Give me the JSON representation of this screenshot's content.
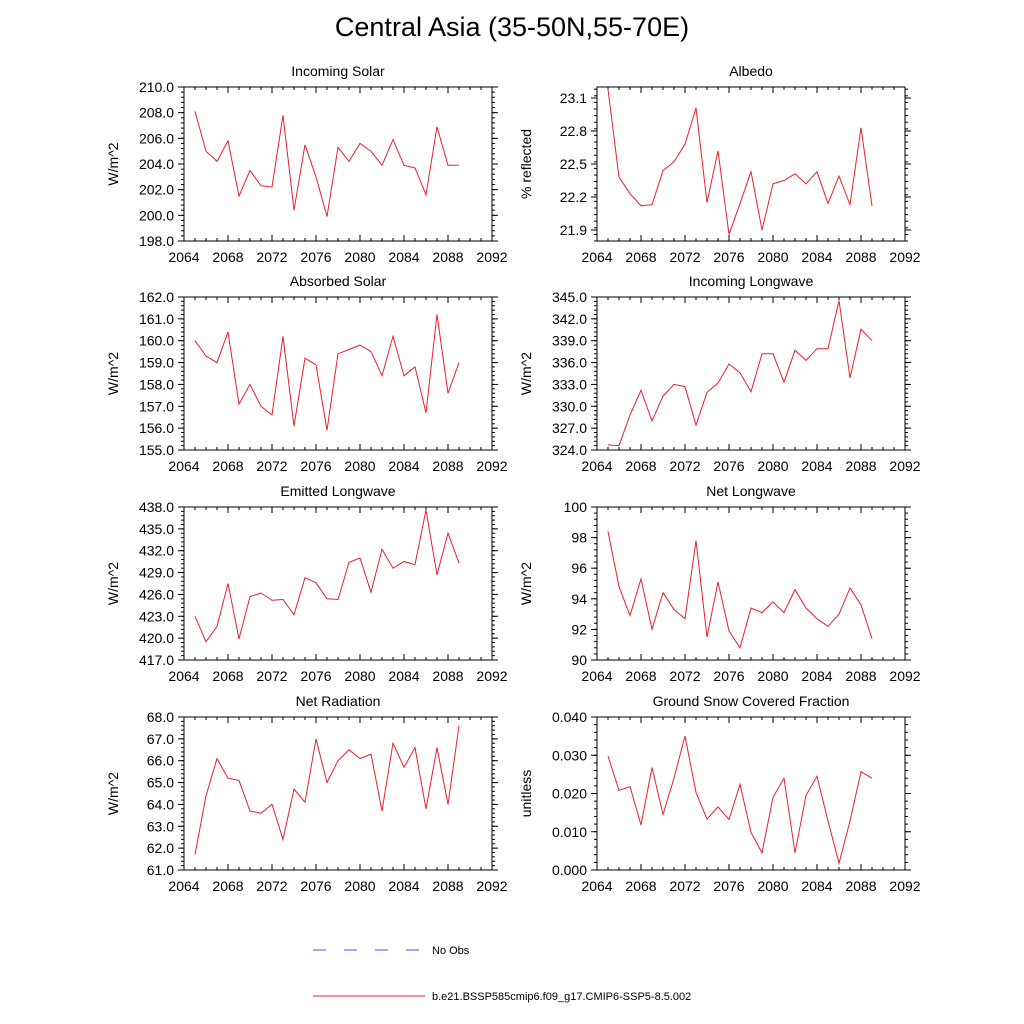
{
  "page": {
    "title": "Central Asia (35-50N,55-70E)"
  },
  "legend": {
    "items": [
      {
        "label": "No Obs",
        "color": "#4a5acb",
        "dash": "dashed"
      },
      {
        "label": "b.e21.BSSP585cmip6.f09_g17.CMIP6-SSP5-8.5.002",
        "color": "#e8202a",
        "dash": "solid"
      }
    ]
  },
  "chart_data": [
    {
      "type": "line",
      "title": "Incoming Solar",
      "ylabel": "W/m^2",
      "xlim": [
        2064,
        2092
      ],
      "xticks": [
        2064,
        2068,
        2072,
        2076,
        2080,
        2084,
        2088,
        2092
      ],
      "ylim": [
        198.0,
        210.0
      ],
      "yticks": [
        "198.0",
        "200.0",
        "202.0",
        "204.0",
        "206.0",
        "208.0",
        "210.0"
      ],
      "color": "#e8202a",
      "x": [
        2065,
        2066,
        2067,
        2068,
        2069,
        2070,
        2071,
        2072,
        2073,
        2074,
        2075,
        2076,
        2077,
        2078,
        2079,
        2080,
        2081,
        2082,
        2083,
        2084,
        2085,
        2086,
        2087,
        2088,
        2089
      ],
      "y": [
        208.1,
        205.0,
        204.2,
        205.8,
        201.5,
        203.5,
        202.3,
        202.2,
        207.8,
        200.4,
        205.5,
        203.0,
        199.9,
        205.3,
        204.2,
        205.6,
        205.0,
        203.9,
        205.9,
        203.9,
        203.7,
        201.6,
        206.9,
        203.9,
        203.9
      ]
    },
    {
      "type": "line",
      "title": "Albedo",
      "ylabel": "% reflected",
      "xlim": [
        2064,
        2092
      ],
      "xticks": [
        2064,
        2068,
        2072,
        2076,
        2080,
        2084,
        2088,
        2092
      ],
      "ylim": [
        21.8,
        23.2
      ],
      "yticks": [
        "21.9",
        "22.2",
        "22.5",
        "22.8",
        "23.1"
      ],
      "color": "#e8202a",
      "x": [
        2065,
        2066,
        2067,
        2068,
        2069,
        2070,
        2071,
        2072,
        2073,
        2074,
        2075,
        2076,
        2077,
        2078,
        2079,
        2080,
        2081,
        2082,
        2083,
        2084,
        2085,
        2086,
        2087,
        2088,
        2089
      ],
      "y": [
        23.18,
        22.38,
        22.23,
        22.12,
        22.13,
        22.44,
        22.52,
        22.68,
        23.01,
        22.15,
        22.62,
        21.86,
        22.14,
        22.43,
        21.9,
        22.32,
        22.35,
        22.41,
        22.32,
        22.43,
        22.14,
        22.39,
        22.13,
        22.83,
        22.12
      ]
    },
    {
      "type": "line",
      "title": "Absorbed Solar",
      "ylabel": "W/m^2",
      "xlim": [
        2064,
        2092
      ],
      "xticks": [
        2064,
        2068,
        2072,
        2076,
        2080,
        2084,
        2088,
        2092
      ],
      "ylim": [
        155.0,
        162.0
      ],
      "yticks": [
        "155.0",
        "156.0",
        "157.0",
        "158.0",
        "159.0",
        "160.0",
        "161.0",
        "162.0"
      ],
      "color": "#e8202a",
      "x": [
        2065,
        2066,
        2067,
        2068,
        2069,
        2070,
        2071,
        2072,
        2073,
        2074,
        2075,
        2076,
        2077,
        2078,
        2079,
        2080,
        2081,
        2082,
        2083,
        2084,
        2085,
        2086,
        2087,
        2088,
        2089
      ],
      "y": [
        160.0,
        159.3,
        159.0,
        160.4,
        157.1,
        158.0,
        157.0,
        156.6,
        160.2,
        156.1,
        159.2,
        158.9,
        155.9,
        159.4,
        159.6,
        159.8,
        159.5,
        158.4,
        160.2,
        158.4,
        158.8,
        156.7,
        161.2,
        157.6,
        159.0
      ]
    },
    {
      "type": "line",
      "title": "Incoming Longwave",
      "ylabel": "W/m^2",
      "xlim": [
        2064,
        2092
      ],
      "xticks": [
        2064,
        2068,
        2072,
        2076,
        2080,
        2084,
        2088,
        2092
      ],
      "ylim": [
        324.0,
        345.0
      ],
      "yticks": [
        "324.0",
        "327.0",
        "330.0",
        "333.0",
        "336.0",
        "339.0",
        "342.0",
        "345.0"
      ],
      "color": "#e8202a",
      "x": [
        2065,
        2066,
        2067,
        2068,
        2069,
        2070,
        2071,
        2072,
        2073,
        2074,
        2075,
        2076,
        2077,
        2078,
        2079,
        2080,
        2081,
        2082,
        2083,
        2084,
        2085,
        2086,
        2087,
        2088,
        2089
      ],
      "y": [
        324.7,
        324.6,
        328.8,
        332.2,
        328.0,
        331.4,
        333.0,
        332.7,
        327.4,
        331.9,
        333.2,
        335.8,
        334.6,
        332.0,
        337.2,
        337.2,
        333.3,
        337.7,
        336.3,
        337.9,
        337.9,
        344.5,
        333.9,
        340.6,
        339.0
      ]
    },
    {
      "type": "line",
      "title": "Emitted Longwave",
      "ylabel": "W/m^2",
      "xlim": [
        2064,
        2092
      ],
      "xticks": [
        2064,
        2068,
        2072,
        2076,
        2080,
        2084,
        2088,
        2092
      ],
      "ylim": [
        417.0,
        438.0
      ],
      "yticks": [
        "417.0",
        "420.0",
        "423.0",
        "426.0",
        "429.0",
        "432.0",
        "435.0",
        "438.0"
      ],
      "color": "#e8202a",
      "x": [
        2065,
        2066,
        2067,
        2068,
        2069,
        2070,
        2071,
        2072,
        2073,
        2074,
        2075,
        2076,
        2077,
        2078,
        2079,
        2080,
        2081,
        2082,
        2083,
        2084,
        2085,
        2086,
        2087,
        2088,
        2089
      ],
      "y": [
        423.0,
        419.5,
        421.6,
        427.5,
        419.9,
        425.7,
        426.2,
        425.2,
        425.3,
        423.2,
        428.3,
        427.6,
        425.4,
        425.3,
        430.4,
        431.0,
        426.3,
        432.2,
        429.6,
        430.5,
        430.1,
        437.6,
        428.7,
        434.4,
        430.3
      ]
    },
    {
      "type": "line",
      "title": "Net Longwave",
      "ylabel": "W/m^2",
      "xlim": [
        2064,
        2092
      ],
      "xticks": [
        2064,
        2068,
        2072,
        2076,
        2080,
        2084,
        2088,
        2092
      ],
      "ylim": [
        90,
        100
      ],
      "yticks": [
        "90",
        "92",
        "94",
        "96",
        "98",
        "100"
      ],
      "color": "#e8202a",
      "x": [
        2065,
        2066,
        2067,
        2068,
        2069,
        2070,
        2071,
        2072,
        2073,
        2074,
        2075,
        2076,
        2077,
        2078,
        2079,
        2080,
        2081,
        2082,
        2083,
        2084,
        2085,
        2086,
        2087,
        2088,
        2089
      ],
      "y": [
        98.4,
        94.8,
        92.9,
        95.3,
        92.0,
        94.4,
        93.3,
        92.7,
        97.8,
        91.5,
        95.1,
        91.9,
        90.8,
        93.4,
        93.1,
        93.8,
        93.1,
        94.6,
        93.4,
        92.7,
        92.2,
        93.0,
        94.7,
        93.6,
        91.4
      ]
    },
    {
      "type": "line",
      "title": "Net Radiation",
      "ylabel": "W/m^2",
      "xlim": [
        2064,
        2092
      ],
      "xticks": [
        2064,
        2068,
        2072,
        2076,
        2080,
        2084,
        2088,
        2092
      ],
      "ylim": [
        61.0,
        68.0
      ],
      "yticks": [
        "61.0",
        "62.0",
        "63.0",
        "64.0",
        "65.0",
        "66.0",
        "67.0",
        "68.0"
      ],
      "color": "#e8202a",
      "x": [
        2065,
        2066,
        2067,
        2068,
        2069,
        2070,
        2071,
        2072,
        2073,
        2074,
        2075,
        2076,
        2077,
        2078,
        2079,
        2080,
        2081,
        2082,
        2083,
        2084,
        2085,
        2086,
        2087,
        2088,
        2089
      ],
      "y": [
        61.7,
        64.4,
        66.1,
        65.2,
        65.1,
        63.7,
        63.6,
        64.0,
        62.4,
        64.7,
        64.1,
        67.0,
        65.0,
        66.0,
        66.5,
        66.1,
        66.3,
        63.7,
        66.8,
        65.7,
        66.6,
        63.8,
        66.6,
        64.0,
        67.6
      ]
    },
    {
      "type": "line",
      "title": "Ground Snow Covered Fraction",
      "ylabel": "unitless",
      "xlim": [
        2064,
        2092
      ],
      "xticks": [
        2064,
        2068,
        2072,
        2076,
        2080,
        2084,
        2088,
        2092
      ],
      "ylim": [
        0.0,
        0.04
      ],
      "yticks": [
        "0.000",
        "0.010",
        "0.020",
        "0.030",
        "0.040"
      ],
      "color": "#e8202a",
      "x": [
        2065,
        2066,
        2067,
        2068,
        2069,
        2070,
        2071,
        2072,
        2073,
        2074,
        2075,
        2076,
        2077,
        2078,
        2079,
        2080,
        2081,
        2082,
        2083,
        2084,
        2085,
        2086,
        2087,
        2088,
        2089
      ],
      "y": [
        0.0298,
        0.0208,
        0.0218,
        0.0118,
        0.0268,
        0.0145,
        0.024,
        0.035,
        0.0203,
        0.0133,
        0.0165,
        0.0132,
        0.0224,
        0.0098,
        0.0045,
        0.019,
        0.024,
        0.0045,
        0.0195,
        0.0245,
        0.0128,
        0.0018,
        0.0128,
        0.0257,
        0.024
      ]
    }
  ]
}
